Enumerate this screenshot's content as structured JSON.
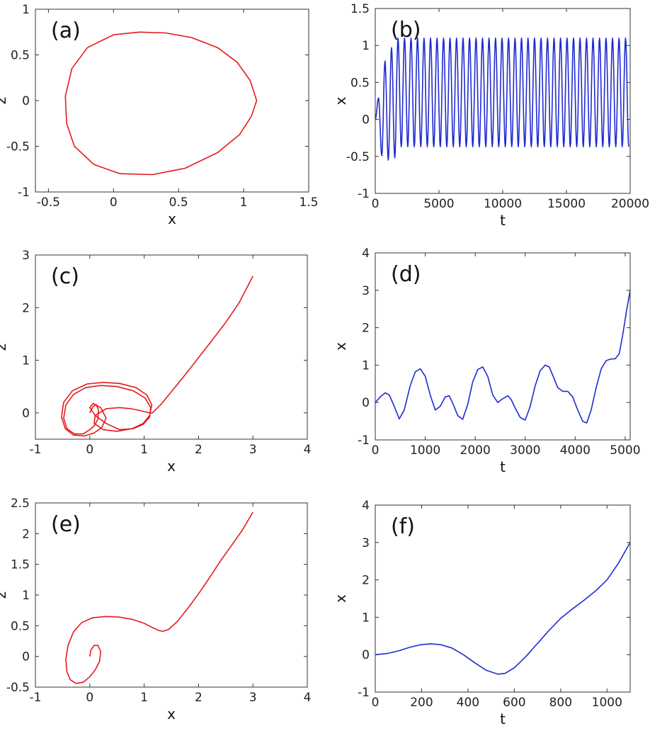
{
  "chart_data": [
    {
      "id": "a",
      "type": "line",
      "panel_label": "(a)",
      "xlabel": "x",
      "ylabel": "z",
      "xlim": [
        -0.6,
        1.5
      ],
      "ylim": [
        -1,
        1
      ],
      "xticks": [
        -0.5,
        0,
        0.5,
        1,
        1.5
      ],
      "yticks": [
        -1,
        -0.5,
        0,
        0.5,
        1
      ],
      "xtick_labels": [
        "-0.5",
        "0",
        "0.5",
        "1",
        "1.5"
      ],
      "ytick_labels": [
        "-1",
        "-0.5",
        "0",
        "0.5",
        "1"
      ],
      "color": "#e41a1c",
      "grid": false,
      "series": [
        {
          "x": [
            1.1,
            1.05,
            0.95,
            0.8,
            0.6,
            0.4,
            0.2,
            0.0,
            -0.2,
            -0.32,
            -0.37,
            -0.36,
            -0.3,
            -0.15,
            0.05,
            0.3,
            0.55,
            0.8,
            0.97,
            1.06,
            1.1
          ],
          "y": [
            0.0,
            0.22,
            0.42,
            0.58,
            0.69,
            0.74,
            0.75,
            0.72,
            0.58,
            0.35,
            0.05,
            -0.25,
            -0.5,
            -0.7,
            -0.8,
            -0.81,
            -0.74,
            -0.57,
            -0.37,
            -0.17,
            0.0
          ]
        }
      ]
    },
    {
      "id": "b",
      "type": "line",
      "panel_label": "(b)",
      "xlabel": "t",
      "ylabel": "x",
      "xlim": [
        0,
        20000
      ],
      "ylim": [
        -1,
        1.5
      ],
      "xticks": [
        0,
        5000,
        10000,
        15000,
        20000
      ],
      "yticks": [
        -1,
        -0.5,
        0,
        0.5,
        1,
        1.5
      ],
      "xtick_labels": [
        "0",
        "5000",
        "10000",
        "15000",
        "20000"
      ],
      "ytick_labels": [
        "-1",
        "-0.5",
        "0",
        "0.5",
        "1",
        "1.5"
      ],
      "color": "#1f2bd0",
      "grid": false,
      "oscillation": {
        "period": 510,
        "cycles": 39,
        "peaks": [
          0.29,
          0.79,
          0.97,
          1.1
        ],
        "steady_peak": 1.1,
        "troughs": [
          -0.49,
          -0.55,
          -0.52
        ],
        "steady_trough": -0.37,
        "end_value": -0.37
      }
    },
    {
      "id": "c",
      "type": "line",
      "panel_label": "(c)",
      "xlabel": "x",
      "ylabel": "z",
      "xlim": [
        -1,
        4
      ],
      "ylim": [
        -0.5,
        3
      ],
      "xticks": [
        -1,
        0,
        1,
        2,
        3,
        4
      ],
      "yticks": [
        0,
        1,
        2,
        3
      ],
      "xtick_labels": [
        "-1",
        "0",
        "1",
        "2",
        "3",
        "4"
      ],
      "ytick_labels": [
        "0",
        "1",
        "2",
        "3"
      ],
      "color": "#e41a1c",
      "grid": false,
      "series": [
        {
          "x": [
            0.0,
            0.06,
            0.12,
            0.16,
            0.15,
            0.08,
            0.0,
            -0.12,
            -0.28,
            -0.42,
            -0.48,
            -0.44,
            -0.3,
            -0.08,
            0.2,
            0.5,
            0.8,
            1.02,
            1.12,
            1.1,
            0.98,
            0.8,
            0.55,
            0.3,
            0.1,
            0.0,
            0.06,
            0.2,
            0.3,
            0.22,
            0.08,
            -0.1,
            -0.3,
            -0.45,
            -0.52,
            -0.48,
            -0.32,
            -0.05,
            0.25,
            0.55,
            0.85,
            1.05,
            1.14,
            1.1,
            0.98,
            0.78,
            0.5,
            0.25,
            0.08,
            0.1,
            0.3,
            0.55,
            0.75,
            0.9,
            1.02,
            1.1,
            1.15,
            1.3,
            1.5,
            1.75,
            2.0,
            2.25,
            2.5,
            2.75,
            3.0
          ],
          "y": [
            0.0,
            0.12,
            0.16,
            0.05,
            -0.12,
            -0.25,
            -0.32,
            -0.4,
            -0.4,
            -0.3,
            -0.1,
            0.15,
            0.35,
            0.48,
            0.52,
            0.5,
            0.42,
            0.28,
            0.1,
            -0.08,
            -0.22,
            -0.3,
            -0.32,
            -0.2,
            -0.05,
            0.1,
            0.18,
            0.1,
            -0.1,
            -0.28,
            -0.38,
            -0.44,
            -0.42,
            -0.3,
            -0.08,
            0.2,
            0.42,
            0.55,
            0.58,
            0.56,
            0.48,
            0.34,
            0.15,
            -0.05,
            -0.2,
            -0.3,
            -0.35,
            -0.32,
            -0.2,
            -0.05,
            0.08,
            0.1,
            0.08,
            0.05,
            0.02,
            0.0,
            0.0,
            0.15,
            0.4,
            0.72,
            1.05,
            1.38,
            1.72,
            2.1,
            2.6
          ]
        }
      ]
    },
    {
      "id": "d",
      "type": "line",
      "panel_label": "(d)",
      "xlabel": "t",
      "ylabel": "x",
      "xlim": [
        0,
        5100
      ],
      "ylim": [
        -1,
        4
      ],
      "xticks": [
        0,
        1000,
        2000,
        3000,
        4000,
        5000
      ],
      "yticks": [
        -1,
        0,
        1,
        2,
        3,
        4
      ],
      "xtick_labels": [
        "0",
        "1000",
        "2000",
        "3000",
        "4000",
        "5000"
      ],
      "ytick_labels": [
        "-1",
        "0",
        "1",
        "2",
        "3",
        "4"
      ],
      "color": "#1f2bd0",
      "grid": false,
      "series": [
        {
          "x": [
            0,
            100,
            200,
            280,
            380,
            480,
            580,
            700,
            800,
            900,
            1000,
            1100,
            1200,
            1300,
            1400,
            1480,
            1560,
            1650,
            1750,
            1850,
            1950,
            2050,
            2150,
            2250,
            2350,
            2450,
            2550,
            2650,
            2720,
            2800,
            2900,
            3000,
            3100,
            3200,
            3300,
            3400,
            3480,
            3560,
            3650,
            3750,
            3850,
            3950,
            4050,
            4150,
            4230,
            4320,
            4420,
            4520,
            4620,
            4700,
            4800,
            4880,
            4950,
            5020,
            5100
          ],
          "y": [
            0.0,
            0.15,
            0.26,
            0.2,
            -0.1,
            -0.44,
            -0.2,
            0.45,
            0.82,
            0.9,
            0.7,
            0.2,
            -0.2,
            -0.1,
            0.15,
            0.18,
            -0.05,
            -0.35,
            -0.45,
            -0.05,
            0.55,
            0.88,
            0.95,
            0.7,
            0.2,
            0.0,
            0.1,
            0.18,
            0.08,
            -0.15,
            -0.4,
            -0.47,
            -0.1,
            0.45,
            0.85,
            1.0,
            0.95,
            0.7,
            0.4,
            0.3,
            0.3,
            0.15,
            -0.2,
            -0.5,
            -0.55,
            -0.2,
            0.4,
            0.9,
            1.12,
            1.16,
            1.17,
            1.3,
            1.8,
            2.4,
            3.0
          ]
        }
      ]
    },
    {
      "id": "e",
      "type": "line",
      "panel_label": "(e)",
      "xlabel": "x",
      "ylabel": "z",
      "xlim": [
        -1,
        4
      ],
      "ylim": [
        -0.5,
        2.5
      ],
      "xticks": [
        -1,
        0,
        1,
        2,
        3,
        4
      ],
      "yticks": [
        -0.5,
        0,
        0.5,
        1,
        1.5,
        2,
        2.5
      ],
      "xtick_labels": [
        "-1",
        "0",
        "1",
        "2",
        "3",
        "4"
      ],
      "ytick_labels": [
        "-0.5",
        "0",
        "0.5",
        "1",
        "1.5",
        "2",
        "2.5"
      ],
      "color": "#e41a1c",
      "grid": false,
      "series": [
        {
          "x": [
            0.0,
            0.02,
            0.08,
            0.15,
            0.2,
            0.18,
            0.1,
            0.0,
            -0.12,
            -0.25,
            -0.36,
            -0.42,
            -0.44,
            -0.4,
            -0.3,
            -0.15,
            0.05,
            0.3,
            0.55,
            0.8,
            1.0,
            1.15,
            1.28,
            1.35,
            1.45,
            1.6,
            1.8,
            2.0,
            2.2,
            2.4,
            2.6,
            2.8,
            3.0
          ],
          "y": [
            0.0,
            0.1,
            0.18,
            0.18,
            0.08,
            -0.08,
            -0.22,
            -0.33,
            -0.42,
            -0.44,
            -0.38,
            -0.25,
            -0.05,
            0.18,
            0.4,
            0.55,
            0.63,
            0.65,
            0.64,
            0.6,
            0.54,
            0.47,
            0.42,
            0.41,
            0.44,
            0.56,
            0.78,
            1.02,
            1.28,
            1.55,
            1.8,
            2.05,
            2.35
          ]
        }
      ]
    },
    {
      "id": "f",
      "type": "line",
      "panel_label": "(f)",
      "xlabel": "t",
      "ylabel": "x",
      "xlim": [
        0,
        1100
      ],
      "ylim": [
        -1,
        4
      ],
      "xticks": [
        0,
        200,
        400,
        600,
        800,
        1000
      ],
      "yticks": [
        -1,
        0,
        1,
        2,
        3,
        4
      ],
      "xtick_labels": [
        "0",
        "200",
        "400",
        "600",
        "800",
        "1000"
      ],
      "ytick_labels": [
        "-1",
        "0",
        "1",
        "2",
        "3",
        "4"
      ],
      "color": "#1f2bd0",
      "grid": false,
      "series": [
        {
          "x": [
            0,
            50,
            100,
            150,
            200,
            240,
            280,
            330,
            380,
            430,
            480,
            530,
            560,
            600,
            650,
            700,
            750,
            800,
            850,
            900,
            950,
            1000,
            1050,
            1100
          ],
          "y": [
            0.0,
            0.03,
            0.1,
            0.2,
            0.27,
            0.29,
            0.27,
            0.18,
            0.0,
            -0.22,
            -0.42,
            -0.52,
            -0.5,
            -0.35,
            -0.05,
            0.3,
            0.65,
            0.97,
            1.22,
            1.45,
            1.7,
            2.0,
            2.45,
            3.0
          ]
        }
      ]
    }
  ]
}
